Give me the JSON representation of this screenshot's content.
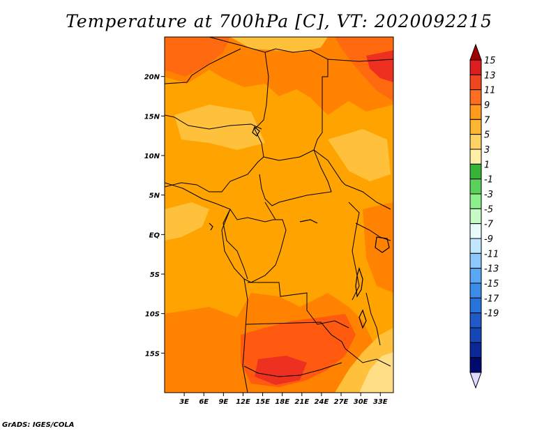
{
  "title": "Temperature at 700hPa [C], VT: 2020092215",
  "credit": "GrADS: IGES/COLA",
  "map": {
    "lon_range": [
      0,
      35
    ],
    "lat_range": [
      -20,
      25
    ],
    "lon_ticks": [
      {
        "value": 3,
        "label": "3E"
      },
      {
        "value": 6,
        "label": "6E"
      },
      {
        "value": 9,
        "label": "9E"
      },
      {
        "value": 12,
        "label": "12E"
      },
      {
        "value": 15,
        "label": "15E"
      },
      {
        "value": 18,
        "label": "18E"
      },
      {
        "value": 21,
        "label": "21E"
      },
      {
        "value": 24,
        "label": "24E"
      },
      {
        "value": 27,
        "label": "27E"
      },
      {
        "value": 30,
        "label": "30E"
      },
      {
        "value": 33,
        "label": "33E"
      }
    ],
    "lat_ticks": [
      {
        "value": 20,
        "label": "20N"
      },
      {
        "value": 15,
        "label": "15N"
      },
      {
        "value": 10,
        "label": "10N"
      },
      {
        "value": 5,
        "label": "5N"
      },
      {
        "value": 0,
        "label": "EQ"
      },
      {
        "value": -5,
        "label": "5S"
      },
      {
        "value": -10,
        "label": "10S"
      },
      {
        "value": -15,
        "label": "15S"
      }
    ]
  },
  "colorbar": {
    "labels": [
      "15",
      "13",
      "11",
      "9",
      "7",
      "5",
      "3",
      "1",
      "-1",
      "-3",
      "-5",
      "-7",
      "-9",
      "-11",
      "-13",
      "-15",
      "-17",
      "-19"
    ],
    "colors": [
      "#a00000",
      "#dc1e1e",
      "#f0461e",
      "#ff6e20",
      "#ff9a1c",
      "#ffb732",
      "#ffd264",
      "#fff0a6",
      "#37b437",
      "#5ad25a",
      "#8cef8c",
      "#c8fac8",
      "#e8fafa",
      "#bfe8ff",
      "#8cc8ff",
      "#5aa8f5",
      "#3a8ce8",
      "#2673d9",
      "#1e5ac8",
      "#1446b4",
      "#0a2896",
      "#000a6e",
      "#e0dcff"
    ]
  },
  "colors": {
    "base": "#ffa300",
    "light": "#ffc03c",
    "pale": "#ffde85",
    "warm": "#ff8200",
    "hot": "#ff5a10",
    "red": "#ee3020"
  }
}
